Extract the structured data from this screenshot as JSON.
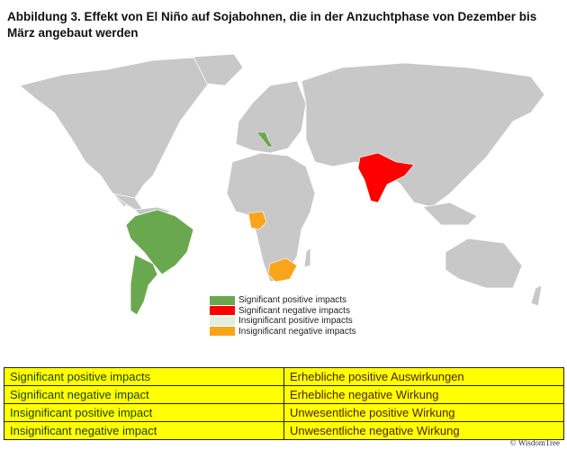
{
  "title": "Abbildung 3. Effekt von El Niño auf Sojabohnen, die in der Anzuchtphase von Dezember bis März angebaut werden",
  "colors": {
    "land": "#c8c8c8",
    "significant_positive": "#6aa84f",
    "significant_negative": "#ff0000",
    "insignificant_positive": "#e2efda",
    "insignificant_negative": "#f9a51b",
    "table_bg": "#ffff00"
  },
  "map": {
    "highlighted": [
      {
        "region": "Brazil",
        "impact": "significant_positive"
      },
      {
        "region": "Argentina",
        "impact": "significant_positive"
      },
      {
        "region": "Italy",
        "impact": "significant_positive"
      },
      {
        "region": "India",
        "impact": "significant_negative"
      },
      {
        "region": "Nigeria",
        "impact": "insignificant_negative"
      },
      {
        "region": "South Africa",
        "impact": "insignificant_negative"
      }
    ]
  },
  "legend": [
    {
      "label": "Significant positive impacts",
      "color": "#6aa84f"
    },
    {
      "label": "Significant negative impacts",
      "color": "#ff0000"
    },
    {
      "label": "Insignificant positive impacts",
      "color": "#e2efda"
    },
    {
      "label": "Insignificant negative impacts",
      "color": "#f9a51b"
    }
  ],
  "table": [
    [
      "Significant positive impacts",
      "Erhebliche positive Auswirkungen"
    ],
    [
      "Significant negative impact",
      "Erhebliche negative Wirkung"
    ],
    [
      "Insignificant positive impact",
      "Unwesentliche positive Wirkung"
    ],
    [
      "Insignificant negative impact",
      "Unwesentliche negative Wirkung"
    ]
  ],
  "copyright": "© WisdomTree"
}
